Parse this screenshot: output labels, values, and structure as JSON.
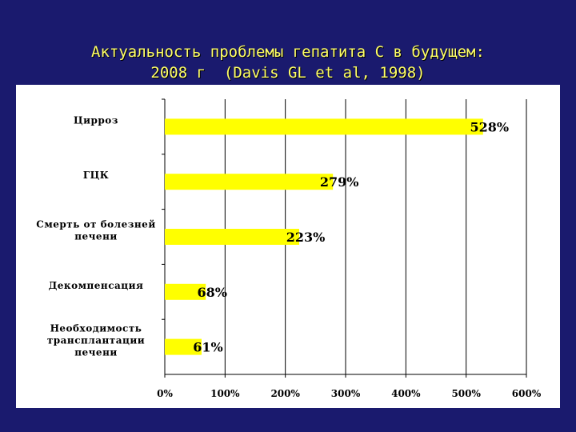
{
  "slide": {
    "title_line1": "Актуальность проблемы гепатита С в будущем:",
    "title_line2": "2008 г  (Davis GL et al, 1998)"
  },
  "colors": {
    "background": "#1a1a6e",
    "title": "#ffff66",
    "plot_area": "#ffffff",
    "bar": "#ffff00"
  },
  "chart_data": {
    "type": "bar",
    "orientation": "horizontal",
    "categories": [
      [
        "Цирроз"
      ],
      [
        "ГЦК"
      ],
      [
        "Смерть от болезней",
        "печени"
      ],
      [
        "Декомпенсация"
      ],
      [
        "Необходимость",
        "трансплантации",
        "печени"
      ]
    ],
    "values": [
      528,
      279,
      223,
      68,
      61
    ],
    "data_labels": [
      "528%",
      "279%",
      "223%",
      "68%",
      "61%"
    ],
    "xlim": [
      0,
      600
    ],
    "x_ticks": [
      0,
      100,
      200,
      300,
      400,
      500,
      600
    ],
    "x_tick_labels": [
      "0%",
      "100%",
      "200%",
      "300%",
      "400%",
      "500%",
      "600%"
    ],
    "grid": true,
    "legend": "none"
  }
}
